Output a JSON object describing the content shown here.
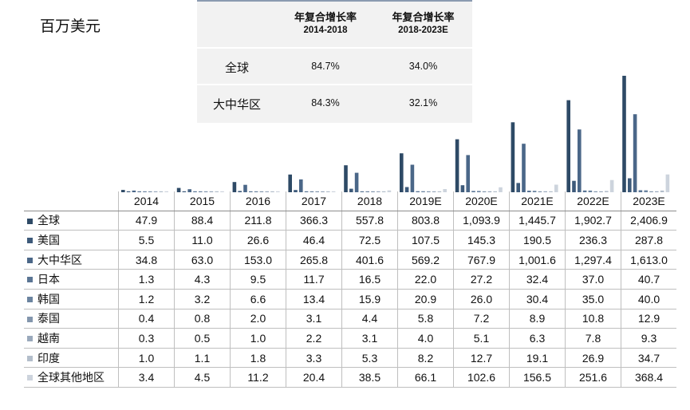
{
  "unit_label": "百万美元",
  "cagr_table": {
    "headers": [
      {
        "title": "年复合增长率",
        "period": "2014-2018"
      },
      {
        "title": "年复合增长率",
        "period": "2018-2023E"
      }
    ],
    "rows": [
      {
        "label": "全球",
        "values": [
          "84.7%",
          "34.0%"
        ]
      },
      {
        "label": "大中华区",
        "values": [
          "84.3%",
          "32.1%"
        ]
      }
    ]
  },
  "chart_data": {
    "type": "bar",
    "categories": [
      "2014",
      "2015",
      "2016",
      "2017",
      "2018",
      "2019E",
      "2020E",
      "2021E",
      "2022E",
      "2023E"
    ],
    "series": [
      {
        "name": "全球",
        "color": "#2e4a66",
        "values": [
          47.9,
          88.4,
          211.8,
          366.3,
          557.8,
          803.8,
          1093.9,
          1445.7,
          1902.7,
          2406.9
        ]
      },
      {
        "name": "美国",
        "color": "#3d5a7a",
        "values": [
          5.5,
          11.0,
          26.6,
          46.4,
          72.5,
          107.5,
          145.3,
          190.5,
          236.3,
          287.8
        ]
      },
      {
        "name": "大中华区",
        "color": "#4b6788",
        "values": [
          34.8,
          63.0,
          153.0,
          265.8,
          401.6,
          569.2,
          767.9,
          1001.6,
          1297.4,
          1613.0
        ]
      },
      {
        "name": "日本",
        "color": "#5a7594",
        "values": [
          1.3,
          4.3,
          9.5,
          11.7,
          16.5,
          22.0,
          27.2,
          32.4,
          37.0,
          40.7
        ]
      },
      {
        "name": "韩国",
        "color": "#6b84a0",
        "values": [
          1.2,
          3.2,
          6.6,
          13.4,
          15.9,
          20.9,
          26.0,
          30.4,
          35.0,
          40.0
        ]
      },
      {
        "name": "泰国",
        "color": "#8396ad",
        "values": [
          0.4,
          0.8,
          2.0,
          3.1,
          4.4,
          5.8,
          7.2,
          8.9,
          10.8,
          12.9
        ]
      },
      {
        "name": "越南",
        "color": "#9aa9bc",
        "values": [
          0.3,
          0.5,
          1.0,
          2.2,
          3.1,
          4.0,
          5.1,
          6.3,
          7.8,
          9.3
        ]
      },
      {
        "name": "印度",
        "color": "#b3becb",
        "values": [
          1.0,
          1.1,
          1.8,
          3.3,
          5.3,
          8.2,
          12.7,
          19.1,
          26.9,
          34.7
        ]
      },
      {
        "name": "全球其他地区",
        "color": "#cdd4dd",
        "values": [
          3.4,
          4.5,
          11.2,
          20.4,
          38.5,
          66.1,
          102.6,
          156.5,
          251.6,
          368.4
        ]
      }
    ],
    "table_values": {
      "全球": [
        "47.9",
        "88.4",
        "211.8",
        "366.3",
        "557.8",
        "803.8",
        "1,093.9",
        "1,445.7",
        "1,902.7",
        "2,406.9"
      ],
      "美国": [
        "5.5",
        "11.0",
        "26.6",
        "46.4",
        "72.5",
        "107.5",
        "145.3",
        "190.5",
        "236.3",
        "287.8"
      ],
      "大中华区": [
        "34.8",
        "63.0",
        "153.0",
        "265.8",
        "401.6",
        "569.2",
        "767.9",
        "1,001.6",
        "1,297.4",
        "1,613.0"
      ],
      "日本": [
        "1.3",
        "4.3",
        "9.5",
        "11.7",
        "16.5",
        "22.0",
        "27.2",
        "32.4",
        "37.0",
        "40.7"
      ],
      "韩国": [
        "1.2",
        "3.2",
        "6.6",
        "13.4",
        "15.9",
        "20.9",
        "26.0",
        "30.4",
        "35.0",
        "40.0"
      ],
      "泰国": [
        "0.4",
        "0.8",
        "2.0",
        "3.1",
        "4.4",
        "5.8",
        "7.2",
        "8.9",
        "10.8",
        "12.9"
      ],
      "越南": [
        "0.3",
        "0.5",
        "1.0",
        "2.2",
        "3.1",
        "4.0",
        "5.1",
        "6.3",
        "7.8",
        "9.3"
      ],
      "印度": [
        "1.0",
        "1.1",
        "1.8",
        "3.3",
        "5.3",
        "8.2",
        "12.7",
        "19.1",
        "26.9",
        "34.7"
      ],
      "全球其他地区": [
        "3.4",
        "4.5",
        "11.2",
        "20.4",
        "38.5",
        "66.1",
        "102.6",
        "156.5",
        "251.6",
        "368.4"
      ]
    },
    "ylim": [
      0,
      2406.9
    ],
    "grid": false,
    "legend": "table-left"
  }
}
